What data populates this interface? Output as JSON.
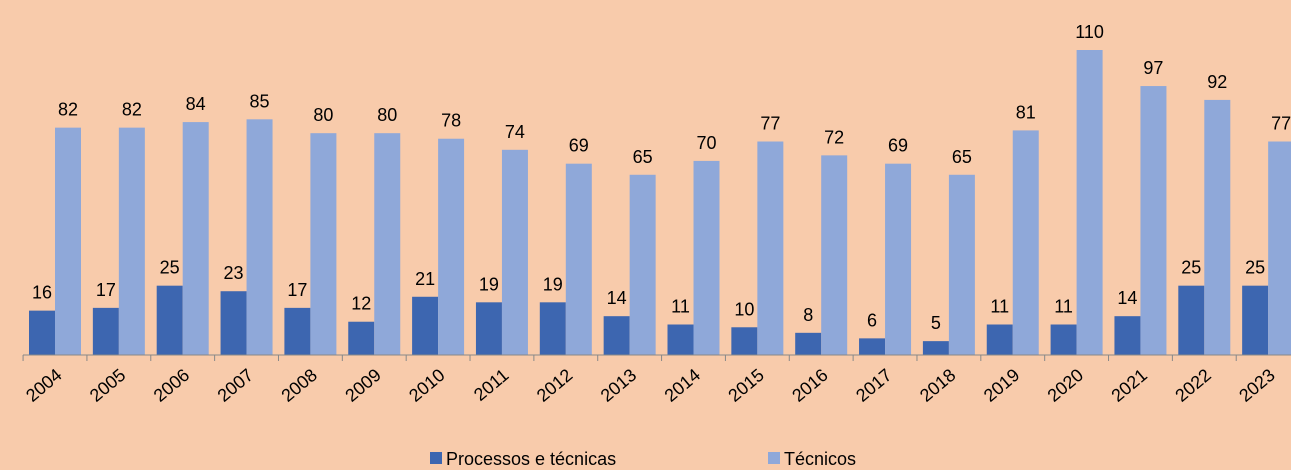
{
  "chart_data": {
    "type": "bar",
    "categories": [
      "2004",
      "2005",
      "2006",
      "2007",
      "2008",
      "2009",
      "2010",
      "2011",
      "2012",
      "2013",
      "2014",
      "2015",
      "2016",
      "2017",
      "2018",
      "2019",
      "2020",
      "2021",
      "2022",
      "2023"
    ],
    "series": [
      {
        "name": "Processos e técnicas",
        "color": "#3d66b0",
        "values": [
          16,
          17,
          25,
          23,
          17,
          12,
          21,
          19,
          19,
          14,
          11,
          10,
          8,
          6,
          5,
          11,
          11,
          14,
          25,
          25
        ]
      },
      {
        "name": "Técnicos",
        "color": "#8fa8d9",
        "values": [
          82,
          82,
          84,
          85,
          80,
          80,
          78,
          74,
          69,
          65,
          70,
          77,
          72,
          69,
          65,
          81,
          110,
          97,
          92,
          77
        ]
      }
    ],
    "ylim": [
      0,
      110
    ]
  }
}
